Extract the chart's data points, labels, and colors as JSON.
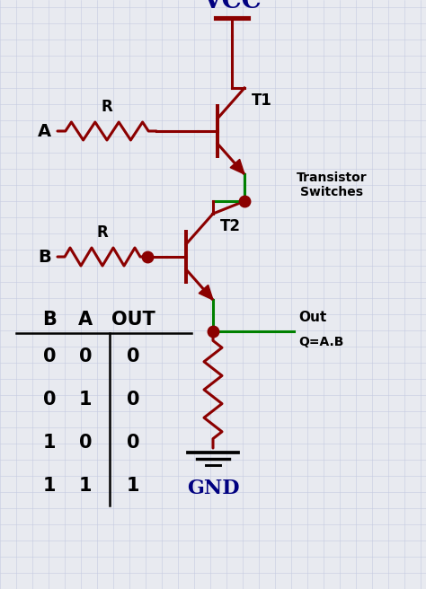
{
  "bg_color": "#e8eaf0",
  "circuit_color": "#8B0000",
  "green_color": "#008000",
  "vcc_label": "VCC",
  "gnd_label": "GND",
  "t1_label": "T1",
  "t2_label": "T2",
  "r_label": "R",
  "a_label": "A",
  "b_label": "B",
  "out_label": "Out",
  "q_label": "Q=A.B",
  "transistor_label": "Transistor\nSwitches",
  "truth_table": {
    "headers": [
      "B",
      "A",
      "OUT"
    ],
    "rows": [
      [
        0,
        0,
        0
      ],
      [
        0,
        1,
        0
      ],
      [
        1,
        0,
        0
      ],
      [
        1,
        1,
        1
      ]
    ]
  },
  "figsize": [
    4.74,
    6.56
  ],
  "dpi": 100
}
